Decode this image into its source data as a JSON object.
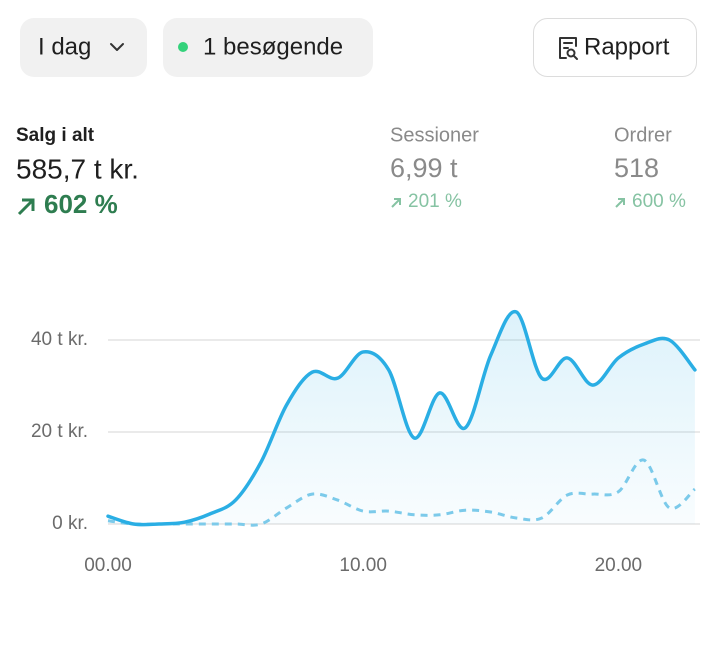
{
  "header": {
    "period": "I dag",
    "visitors": "1 besøgende",
    "report": "Rapport"
  },
  "metrics": [
    {
      "label": "Salg i alt",
      "value": "585,7 t kr.",
      "change": "602 %"
    },
    {
      "label": "Sessioner",
      "value": "6,99 t",
      "change": "201 %"
    },
    {
      "label": "Ordrer",
      "value": "518",
      "change": "600 %"
    }
  ],
  "chart_data": {
    "type": "line",
    "x": [
      0,
      1,
      2,
      3,
      4,
      5,
      6,
      7,
      8,
      9,
      10,
      11,
      12,
      13,
      14,
      15,
      16,
      17,
      18,
      19,
      20,
      21,
      22,
      23
    ],
    "xlim": [
      0,
      23.2
    ],
    "xticks": [
      {
        "value": 0,
        "label": "00.00"
      },
      {
        "value": 10,
        "label": "10.00"
      },
      {
        "value": 20,
        "label": "20.00"
      }
    ],
    "ylim": [
      0,
      50
    ],
    "yticks": [
      {
        "value": 0,
        "label": "0 kr."
      },
      {
        "value": 20,
        "label": "20 t kr."
      },
      {
        "value": 40,
        "label": "40 t kr."
      }
    ],
    "grid": true,
    "series": [
      {
        "color": "#2aaee4",
        "line_style": "solid",
        "area": true,
        "values": [
          1.7,
          0,
          0,
          0.4,
          2.2,
          5.2,
          13.5,
          25.9,
          33,
          31.7,
          37.4,
          33.5,
          18.7,
          28.5,
          20.9,
          36.7,
          46.1,
          31.7,
          36.1,
          30.2,
          36.1,
          39.1,
          40,
          33.5
        ]
      },
      {
        "color": "#7fcbea",
        "line_style": "dashed",
        "area": false,
        "values": [
          0.7,
          0,
          0,
          0,
          0,
          0,
          0,
          3.5,
          6.5,
          5.2,
          2.8,
          2.8,
          2,
          2,
          3,
          2.6,
          1.3,
          1.3,
          6.3,
          6.5,
          7,
          13.9,
          3.5,
          7.6
        ]
      }
    ]
  }
}
